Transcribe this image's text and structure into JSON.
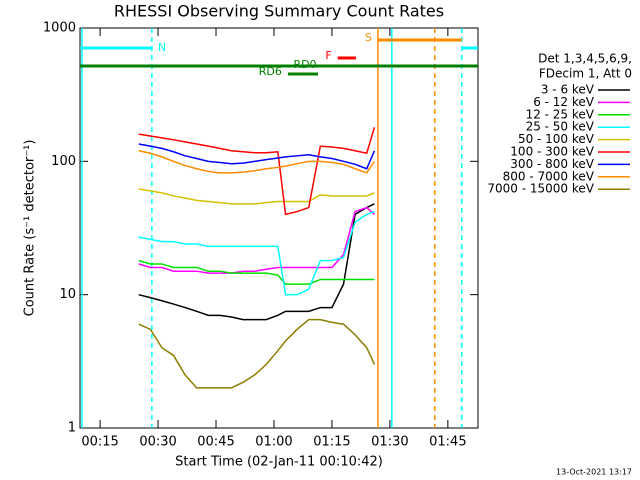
{
  "chart_data": {
    "type": "line",
    "title": "RHESSI Observing Summary Count Rates",
    "xlabel": "Start Time (02-Jan-11 00:10:42)",
    "ylabel": "Count Rate (s⁻¹ detector⁻¹)",
    "legend_title": [
      "Det 1,3,4,5,6,9,",
      "FDecim 1, Att 0"
    ],
    "footer": "13-Oct-2021 13:17",
    "log_y": true,
    "xlim": [
      9.8,
      112.8
    ],
    "ylim": [
      1,
      1000
    ],
    "xticks": [
      {
        "value": 15,
        "label": "00:15"
      },
      {
        "value": 30,
        "label": "00:30"
      },
      {
        "value": 45,
        "label": "00:45"
      },
      {
        "value": 60,
        "label": "01:00"
      },
      {
        "value": 75,
        "label": "01:15"
      },
      {
        "value": 90,
        "label": "01:30"
      },
      {
        "value": 105,
        "label": "01:45"
      }
    ],
    "yticks": [
      1,
      10,
      100,
      1000
    ],
    "x": [
      25,
      28,
      31,
      34,
      37,
      40,
      43,
      46,
      49,
      52,
      55,
      58,
      61,
      63,
      66,
      69,
      72,
      75,
      78,
      81,
      84,
      86
    ],
    "series": [
      {
        "name": "3 - 6 keV",
        "color": "#000000",
        "values": [
          10,
          9.5,
          9,
          8.5,
          8,
          7.5,
          7,
          7,
          6.8,
          6.5,
          6.5,
          6.5,
          7,
          7.5,
          7.5,
          7.5,
          8,
          8,
          12,
          40,
          45,
          48
        ]
      },
      {
        "name": "6 - 12 keV",
        "color": "#ff00ff",
        "values": [
          17,
          16,
          16,
          15,
          15,
          15,
          14.5,
          14.5,
          14.5,
          15,
          15,
          15.5,
          16,
          16,
          16,
          16,
          16,
          16,
          20,
          42,
          45,
          40
        ]
      },
      {
        "name": "12 - 25 keV",
        "color": "#00e000",
        "values": [
          18,
          17,
          17,
          16,
          16,
          16,
          15,
          15,
          14.5,
          14.5,
          14.5,
          14.5,
          14,
          12,
          12,
          12,
          13,
          13,
          13,
          13,
          13,
          13
        ]
      },
      {
        "name": "25 - 50 keV",
        "color": "#00ffff",
        "values": [
          27,
          26,
          25,
          25,
          24,
          24,
          23,
          23,
          23,
          23,
          23,
          23,
          23,
          10,
          10,
          11,
          18,
          18,
          19,
          35,
          40,
          42
        ]
      },
      {
        "name": "50 - 100 keV",
        "color": "#d4c000",
        "values": [
          62,
          60,
          58,
          55,
          53,
          51,
          50,
          49,
          48,
          48,
          48,
          49,
          50,
          50,
          50,
          50,
          56,
          55,
          55,
          55,
          55,
          58
        ]
      },
      {
        "name": "100 - 300 keV",
        "color": "#ff0000",
        "values": [
          160,
          155,
          150,
          145,
          140,
          135,
          130,
          125,
          120,
          118,
          116,
          116,
          118,
          40,
          42,
          45,
          130,
          128,
          125,
          120,
          115,
          180
        ]
      },
      {
        "name": "300 - 800 keV",
        "color": "#0000ff",
        "values": [
          135,
          130,
          125,
          118,
          110,
          105,
          100,
          98,
          96,
          97,
          100,
          103,
          106,
          108,
          110,
          112,
          108,
          105,
          100,
          95,
          88,
          120
        ]
      },
      {
        "name": "800 - 7000 keV",
        "color": "#ff8c00",
        "values": [
          120,
          115,
          108,
          100,
          93,
          88,
          84,
          82,
          82,
          83,
          85,
          88,
          90,
          92,
          96,
          100,
          100,
          98,
          95,
          88,
          82,
          100
        ]
      },
      {
        "name": "7000 - 15000 keV",
        "color": "#8b7d00",
        "values": [
          6,
          5.5,
          4,
          3.5,
          2.5,
          2,
          2,
          2,
          2,
          2.2,
          2.5,
          3,
          3.8,
          4.5,
          5.5,
          6.5,
          6.5,
          6.2,
          6,
          5,
          4,
          3
        ]
      }
    ],
    "intervals": [
      {
        "label": "N",
        "start": 9.8,
        "end": 28.4,
        "color": "#00ffff",
        "level": 48
      },
      {
        "start": 108.6,
        "end": 112.8,
        "color": "#00ffff",
        "level": 48
      },
      {
        "label": "S",
        "start": 86.9,
        "end": 108.6,
        "color": "#ff8c00",
        "level": 40
      },
      {
        "label": "F",
        "start": 76.5,
        "end": 81.2,
        "color": "#ff0000",
        "level": 58
      },
      {
        "label": "RD0",
        "start": 9.8,
        "end": 112.8,
        "color": "#008000",
        "level": 66
      },
      {
        "label": "RD6",
        "start": 63.6,
        "end": 71.4,
        "color": "#008000",
        "level": 74
      }
    ],
    "markers": [
      {
        "x": 10.3,
        "color": "#00ffff",
        "dashed": false
      },
      {
        "x": 28.4,
        "color": "#00ffff",
        "dashed": true
      },
      {
        "x": 86.9,
        "color": "#ff8c00",
        "dashed": false
      },
      {
        "x": 90.5,
        "color": "#00ffff",
        "dashed": false
      },
      {
        "x": 101.6,
        "color": "#ff8c00",
        "dashed": true
      },
      {
        "x": 108.6,
        "color": "#00ffff",
        "dashed": true
      }
    ]
  }
}
